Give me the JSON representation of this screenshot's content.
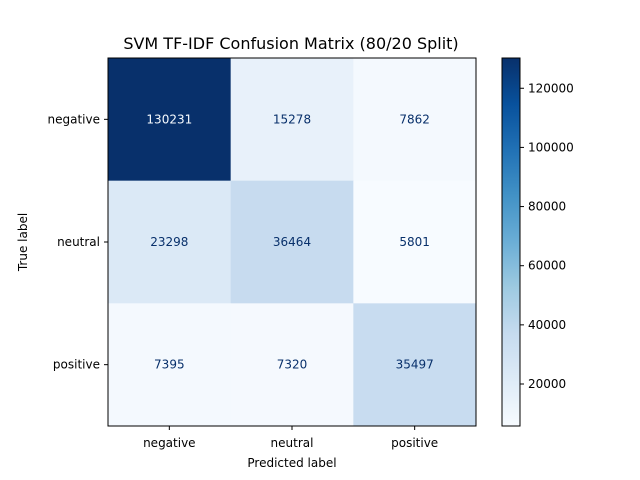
{
  "chart_data": {
    "type": "heatmap",
    "title": "SVM TF-IDF Confusion Matrix (80/20 Split)",
    "xlabel": "Predicted label",
    "ylabel": "True label",
    "x_categories": [
      "negative",
      "neutral",
      "positive"
    ],
    "y_categories": [
      "negative",
      "neutral",
      "positive"
    ],
    "values": [
      [
        130231,
        15278,
        7862
      ],
      [
        23298,
        36464,
        5801
      ],
      [
        7395,
        7320,
        35497
      ]
    ],
    "colormap": "Blues",
    "colorbar": {
      "min": 5801,
      "max": 130231,
      "ticks": [
        20000,
        40000,
        60000,
        80000,
        100000,
        120000
      ]
    },
    "grid": false
  }
}
